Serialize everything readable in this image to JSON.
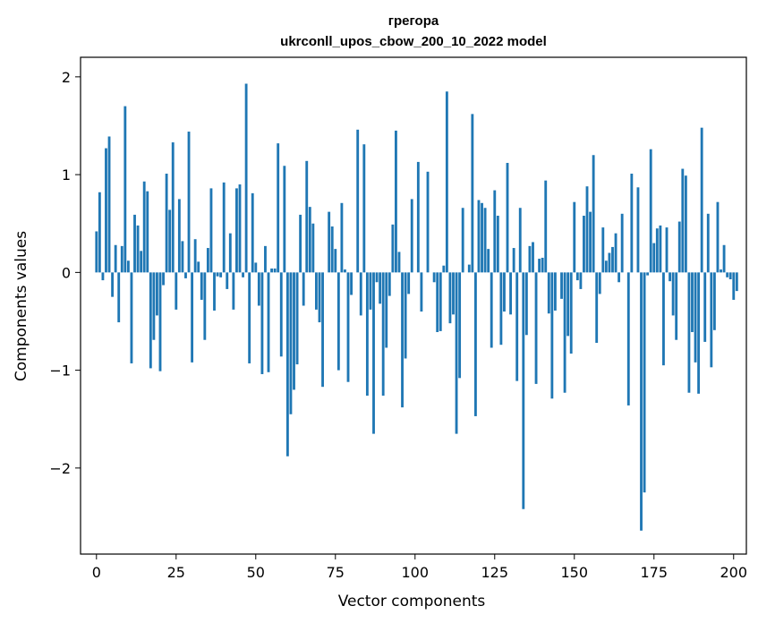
{
  "chart_data": {
    "type": "bar",
    "title": "грегора",
    "subtitle": "ukrconll_upos_cbow_200_10_2022 model",
    "xlabel": "Vector components",
    "ylabel": "Components values",
    "xlim": [
      -5,
      204
    ],
    "ylim": [
      -2.88,
      2.2
    ],
    "xticks": [
      0,
      25,
      50,
      75,
      100,
      125,
      150,
      175,
      200
    ],
    "yticks": [
      -2,
      -1,
      0,
      1,
      2
    ],
    "ytick_labels": [
      "−2",
      "−1",
      "0",
      "1",
      "2"
    ],
    "grid": false,
    "legend": "none",
    "bar_color": "#1f77b4",
    "values": [
      0.42,
      0.82,
      -0.08,
      1.27,
      1.39,
      -0.25,
      0.28,
      -0.51,
      0.27,
      1.7,
      0.12,
      -0.93,
      0.59,
      0.48,
      0.22,
      0.93,
      0.83,
      -0.98,
      -0.69,
      -0.44,
      -1.01,
      -0.13,
      1.01,
      0.64,
      1.33,
      -0.38,
      0.75,
      0.32,
      -0.06,
      1.44,
      -0.92,
      0.34,
      0.11,
      -0.28,
      -0.69,
      0.25,
      0.86,
      -0.39,
      -0.04,
      -0.05,
      0.92,
      -0.17,
      0.4,
      -0.38,
      0.86,
      0.9,
      -0.05,
      1.93,
      -0.93,
      0.81,
      0.1,
      -0.34,
      -1.04,
      0.27,
      -1.02,
      0.04,
      0.04,
      1.32,
      -0.86,
      1.09,
      -1.88,
      -1.45,
      -1.2,
      -0.94,
      0.59,
      -0.34,
      1.14,
      0.67,
      0.5,
      -0.38,
      -0.51,
      -1.17,
      0.0,
      0.62,
      0.47,
      0.24,
      -1.0,
      0.71,
      0.03,
      -1.12,
      -0.23,
      0.0,
      1.46,
      -0.44,
      1.31,
      -1.26,
      -0.38,
      -1.65,
      -0.1,
      -0.32,
      -1.26,
      -0.77,
      -0.24,
      0.49,
      1.45,
      0.21,
      -1.38,
      -0.88,
      -0.22,
      0.75,
      0.0,
      1.13,
      -0.4,
      0.0,
      1.03,
      0.0,
      -0.1,
      -0.61,
      -0.6,
      0.07,
      1.85,
      -0.52,
      -0.43,
      -1.65,
      -1.08,
      0.66,
      0.0,
      0.08,
      1.62,
      -1.47,
      0.74,
      0.71,
      0.66,
      0.24,
      -0.77,
      0.84,
      0.58,
      -0.74,
      -0.4,
      1.12,
      -0.43,
      0.25,
      -1.11,
      0.66,
      -2.42,
      -0.64,
      0.27,
      0.31,
      -1.14,
      0.14,
      0.15,
      0.94,
      -0.42,
      -1.29,
      -0.39,
      0.0,
      -0.27,
      -1.23,
      -0.65,
      -0.83,
      0.72,
      -0.08,
      -0.17,
      0.58,
      0.88,
      0.62,
      1.2,
      -0.72,
      -0.22,
      0.46,
      0.12,
      0.2,
      0.26,
      0.4,
      -0.1,
      0.6,
      0.0,
      -1.36,
      1.01,
      0.0,
      0.87,
      -2.64,
      -2.25,
      -0.03,
      1.26,
      0.3,
      0.45,
      0.48,
      -0.95,
      0.46,
      -0.09,
      -0.44,
      -0.69,
      0.52,
      1.06,
      0.99,
      -1.23,
      -0.61,
      -0.92,
      -1.24,
      1.48,
      -0.71,
      0.6,
      -0.97,
      -0.59,
      0.72,
      0.03,
      0.28,
      -0.05,
      -0.07,
      -0.28,
      -0.19
    ]
  }
}
